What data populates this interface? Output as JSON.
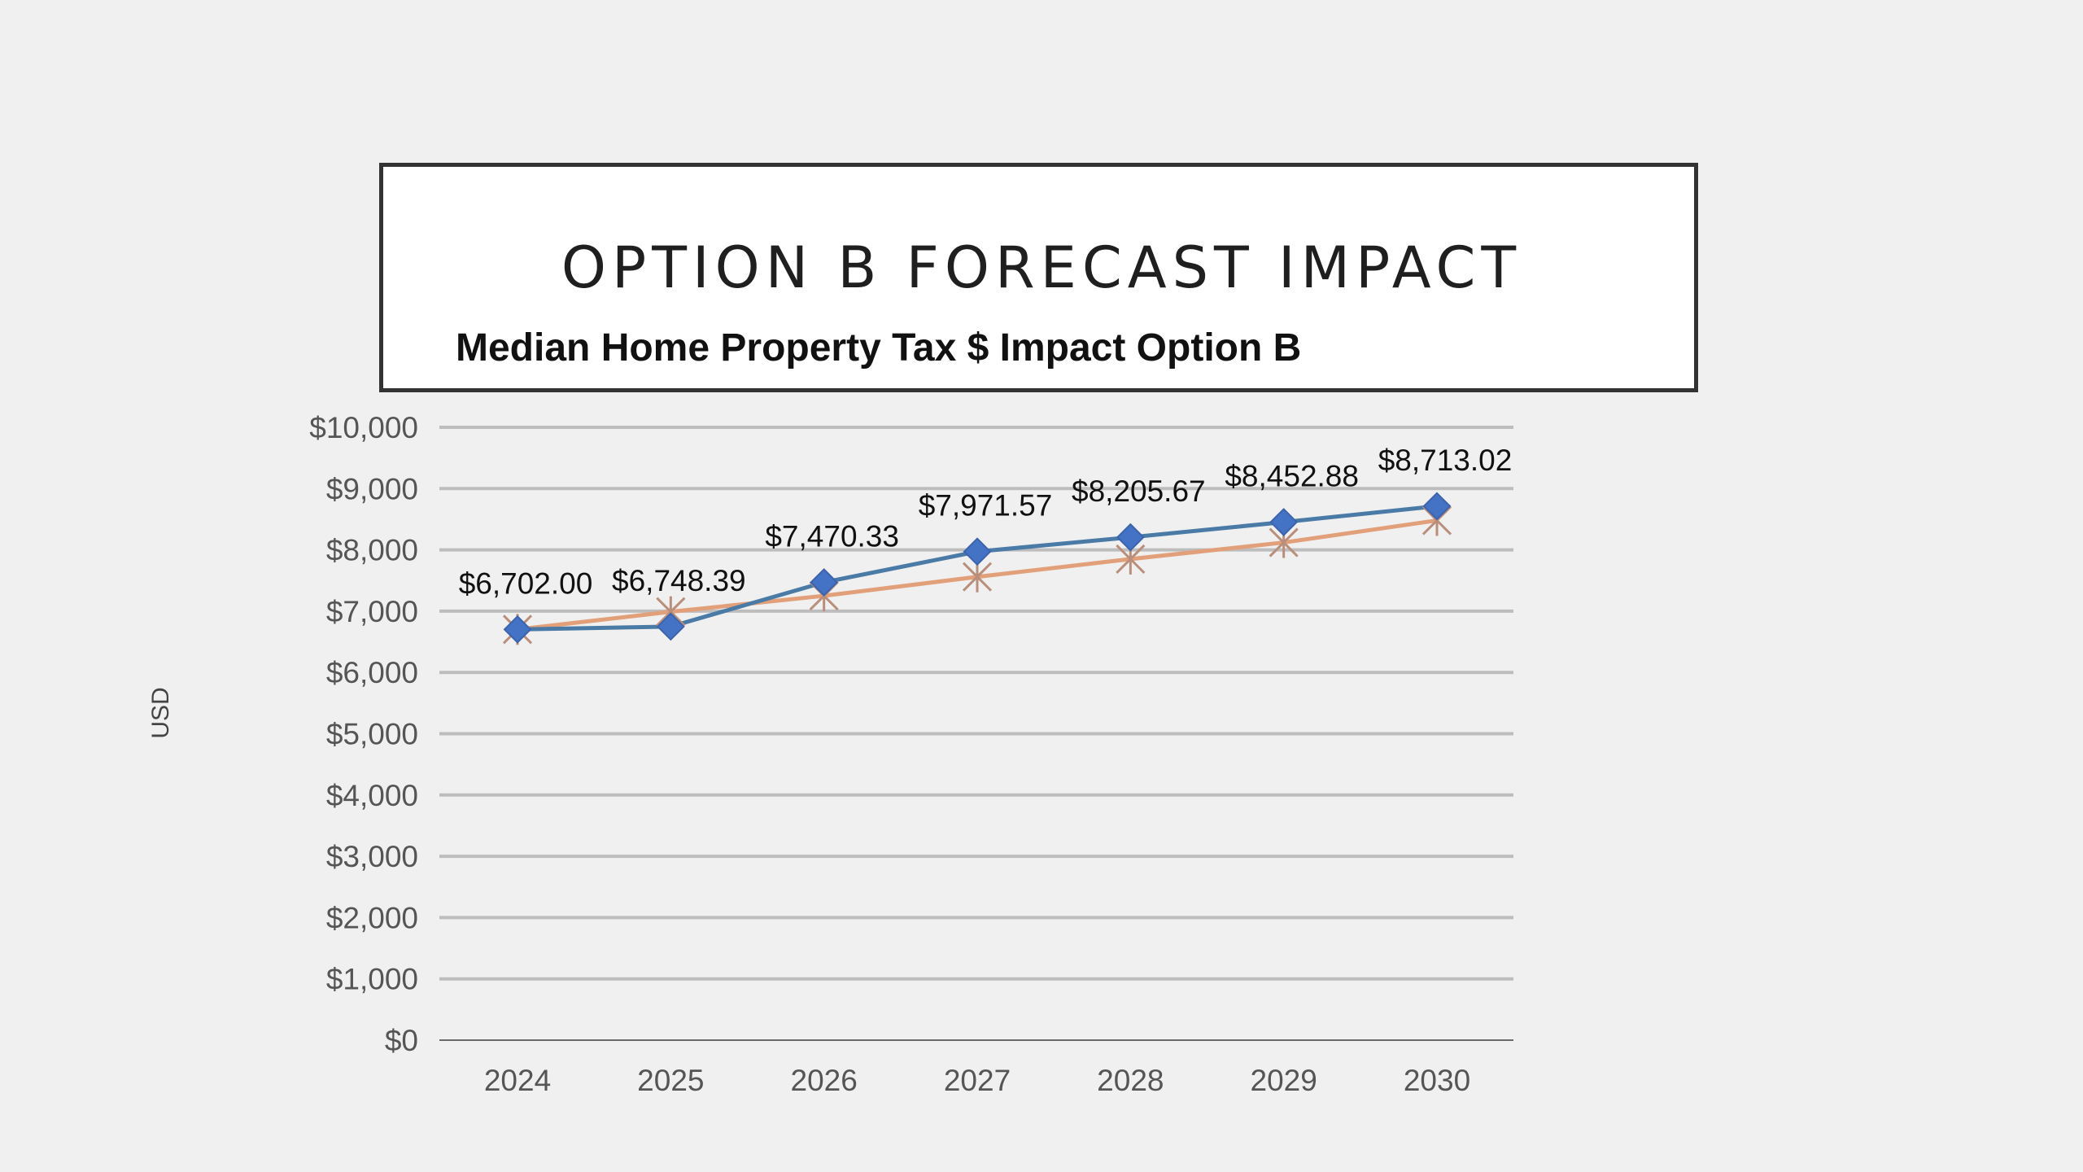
{
  "slide": {
    "title": "OPTION B FORECAST IMPACT"
  },
  "chart_data": {
    "type": "line",
    "title": "Median Home Property Tax $ Impact Option B",
    "xlabel": "",
    "ylabel": "USD",
    "categories": [
      "2024",
      "2025",
      "2026",
      "2027",
      "2028",
      "2029",
      "2030"
    ],
    "ylim": [
      0,
      10000
    ],
    "yticks": [
      0,
      1000,
      2000,
      3000,
      4000,
      5000,
      6000,
      7000,
      8000,
      9000,
      10000
    ],
    "ytick_labels": [
      "$0",
      "$1,000",
      "$2,000",
      "$3,000",
      "$4,000",
      "$5,000",
      "$6,000",
      "$7,000",
      "$8,000",
      "$9,000",
      "$10,000"
    ],
    "grid": true,
    "legend": "none",
    "series": [
      {
        "values": [
          6702.0,
          6748.39,
          7470.33,
          7971.57,
          8205.67,
          8452.88,
          8713.02
        ],
        "data_labels": [
          "$6,702.00",
          "$6,748.39",
          "$7,470.33",
          "$7,971.57",
          "$8,205.67",
          "$8,452.88",
          "$8,713.02"
        ],
        "color": "#4a7aa6",
        "marker": "diamond",
        "marker_color": "#4472c4"
      },
      {
        "values": [
          6702,
          6990,
          7250,
          7560,
          7850,
          8120,
          8480
        ],
        "color": "#e2a07a",
        "marker": "star-x",
        "marker_color": "#b98e7a"
      }
    ]
  }
}
